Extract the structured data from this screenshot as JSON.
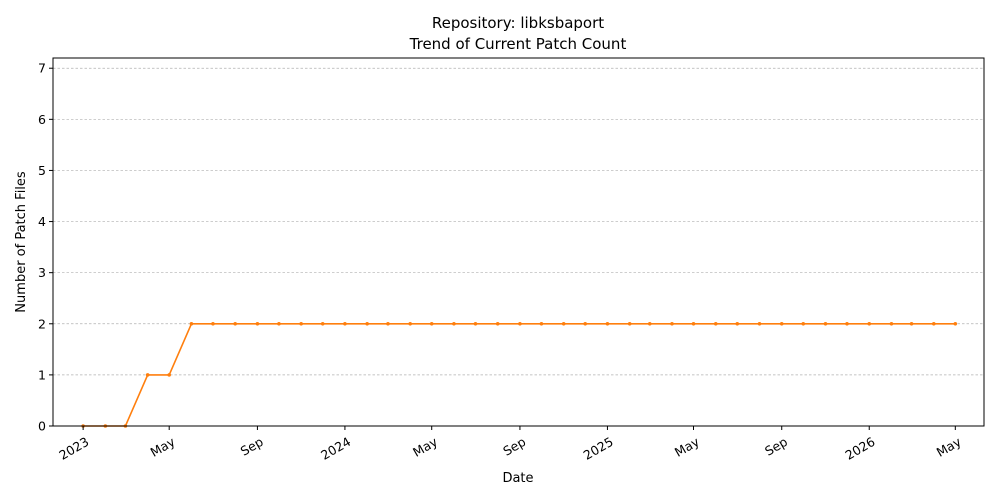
{
  "chart_data": {
    "type": "line",
    "title": "Repository: libksbaport",
    "subtitle": "Trend of Current Patch Count",
    "xlabel": "Date",
    "ylabel": "Number of Patch Files",
    "ylim": [
      0,
      7.2
    ],
    "yticks": [
      0,
      1,
      2,
      3,
      4,
      5,
      6,
      7
    ],
    "xlim": [
      "2022-11-20",
      "2026-06-10"
    ],
    "x_ticks": [
      {
        "date": "2023-01-01",
        "label": "2023"
      },
      {
        "date": "2023-05-01",
        "label": "May"
      },
      {
        "date": "2023-09-01",
        "label": "Sep"
      },
      {
        "date": "2024-01-01",
        "label": "2024"
      },
      {
        "date": "2024-05-01",
        "label": "May"
      },
      {
        "date": "2024-09-01",
        "label": "Sep"
      },
      {
        "date": "2025-01-01",
        "label": "2025"
      },
      {
        "date": "2025-05-01",
        "label": "May"
      },
      {
        "date": "2025-09-01",
        "label": "Sep"
      },
      {
        "date": "2026-01-01",
        "label": "2026"
      },
      {
        "date": "2026-05-01",
        "label": "May"
      }
    ],
    "grid": "y-only",
    "series": [
      {
        "color": "#ff7f0e",
        "x": [
          "2023-01-01",
          "2023-02-01",
          "2023-03-01",
          "2023-04-01",
          "2023-05-01",
          "2023-06-01",
          "2023-07-01",
          "2023-08-01",
          "2023-09-01",
          "2023-10-01",
          "2023-11-01",
          "2023-12-01",
          "2024-01-01",
          "2024-02-01",
          "2024-03-01",
          "2024-04-01",
          "2024-05-01",
          "2024-06-01",
          "2024-07-01",
          "2024-08-01",
          "2024-09-01",
          "2024-10-01",
          "2024-11-01",
          "2024-12-01",
          "2025-01-01",
          "2025-02-01",
          "2025-03-01",
          "2025-04-01",
          "2025-05-01",
          "2025-06-01",
          "2025-07-01",
          "2025-08-01",
          "2025-09-01",
          "2025-10-01",
          "2025-11-01",
          "2025-12-01",
          "2026-01-01",
          "2026-02-01",
          "2026-03-01",
          "2026-04-01",
          "2026-05-01"
        ],
        "values": [
          0,
          0,
          0,
          1,
          1,
          2,
          2,
          2,
          2,
          2,
          2,
          2,
          2,
          2,
          2,
          2,
          2,
          2,
          2,
          2,
          2,
          2,
          2,
          2,
          2,
          2,
          2,
          2,
          2,
          2,
          2,
          2,
          2,
          2,
          2,
          2,
          2,
          2,
          2,
          2,
          2
        ]
      }
    ]
  }
}
